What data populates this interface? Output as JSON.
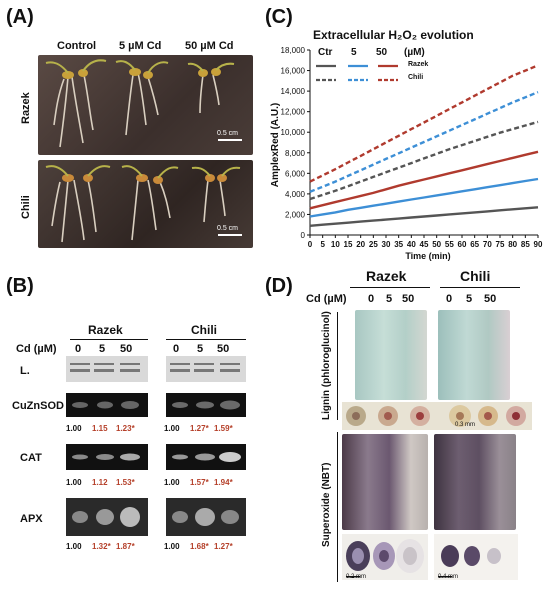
{
  "panel_a": {
    "letter": "(A)",
    "col_headers": [
      "Control",
      "5 µM Cd",
      "50 µM Cd"
    ],
    "row_labels": [
      "Razek",
      "Chili"
    ],
    "scale_bars": [
      "0.5 cm",
      "0.5 cm"
    ]
  },
  "panel_b": {
    "letter": "(B)",
    "group_headers": [
      "Razek",
      "Chili"
    ],
    "cd_label": "Cd (µM)",
    "cd_levels": [
      "0",
      "5",
      "50",
      "0",
      "5",
      "50"
    ],
    "rows": [
      {
        "label": "L.",
        "values": []
      },
      {
        "label": "CuZnSOD",
        "values": [
          "1.00",
          "1.15",
          "1.23*",
          "1.00",
          "1.27*",
          "1.59*"
        ]
      },
      {
        "label": "CAT",
        "values": [
          "1.00",
          "1.12",
          "1.53*",
          "1.00",
          "1.57*",
          "1.94*"
        ]
      },
      {
        "label": "APX",
        "values": [
          "1.00",
          "1.32*",
          "1.87*",
          "1.00",
          "1.68*",
          "1.27*"
        ]
      }
    ]
  },
  "panel_c": {
    "letter": "(C)",
    "title": "Extracellular H₂O₂ evolution",
    "legend_header": [
      "Ctr",
      "5",
      "50",
      "(µM)"
    ],
    "legend_rows": [
      "Razek",
      "Chili"
    ],
    "chart_data": {
      "type": "line",
      "x": [
        0,
        5,
        10,
        15,
        20,
        25,
        30,
        35,
        40,
        45,
        50,
        55,
        60,
        65,
        70,
        75,
        80,
        85,
        90
      ],
      "xlabel": "Time (min)",
      "ylabel": "AmplexRed (A.U.)",
      "xlim": [
        0,
        90
      ],
      "ylim": [
        0,
        18000
      ],
      "yticks": [
        0,
        2000,
        4000,
        6000,
        8000,
        10000,
        12000,
        14000,
        16000,
        18000
      ],
      "series": [
        {
          "name": "Razek Ctr",
          "color": "#555555",
          "dash": false,
          "values": [
            900,
            1000,
            1100,
            1200,
            1300,
            1400,
            1500,
            1600,
            1700,
            1800,
            1900,
            2000,
            2100,
            2200,
            2300,
            2400,
            2500,
            2600,
            2700
          ]
        },
        {
          "name": "Razek 5",
          "color": "#3d8fd6",
          "dash": false,
          "values": [
            1800,
            2000,
            2200,
            2450,
            2650,
            2850,
            3050,
            3250,
            3450,
            3650,
            3850,
            4050,
            4250,
            4450,
            4650,
            4850,
            5050,
            5250,
            5450
          ]
        },
        {
          "name": "Razek 50",
          "color": "#b03a2e",
          "dash": false,
          "values": [
            2600,
            2900,
            3200,
            3500,
            3800,
            4100,
            4450,
            4800,
            5100,
            5400,
            5700,
            6000,
            6300,
            6600,
            6900,
            7200,
            7500,
            7800,
            8100
          ]
        },
        {
          "name": "Chili Ctr",
          "color": "#555555",
          "dash": true,
          "values": [
            3500,
            3900,
            4300,
            4750,
            5200,
            5650,
            6100,
            6550,
            7000,
            7450,
            7900,
            8350,
            8750,
            9150,
            9550,
            9950,
            10300,
            10650,
            11000
          ]
        },
        {
          "name": "Chili 5",
          "color": "#3d8fd6",
          "dash": true,
          "values": [
            4200,
            4700,
            5200,
            5750,
            6300,
            6850,
            7400,
            7950,
            8500,
            9050,
            9600,
            10150,
            10700,
            11250,
            11800,
            12350,
            12900,
            13400,
            13900
          ]
        },
        {
          "name": "Chili 50",
          "color": "#b03a2e",
          "dash": true,
          "values": [
            5200,
            5800,
            6400,
            7050,
            7700,
            8350,
            9000,
            9650,
            10300,
            10950,
            11600,
            12250,
            12900,
            13550,
            14200,
            14850,
            15500,
            16000,
            16500
          ]
        }
      ]
    }
  },
  "panel_d": {
    "letter": "(D)",
    "group_headers": [
      "Razek",
      "Chili"
    ],
    "cd_label": "Cd (µM)",
    "cd_levels": [
      "0",
      "5",
      "50",
      "0",
      "5",
      "50"
    ],
    "row_labels": [
      "Lignin (phloroglucinol)",
      "Superoxide (NBT)"
    ],
    "scale_bars": [
      "0.3 mm",
      "0.2 mm",
      "0.4 mm"
    ]
  }
}
